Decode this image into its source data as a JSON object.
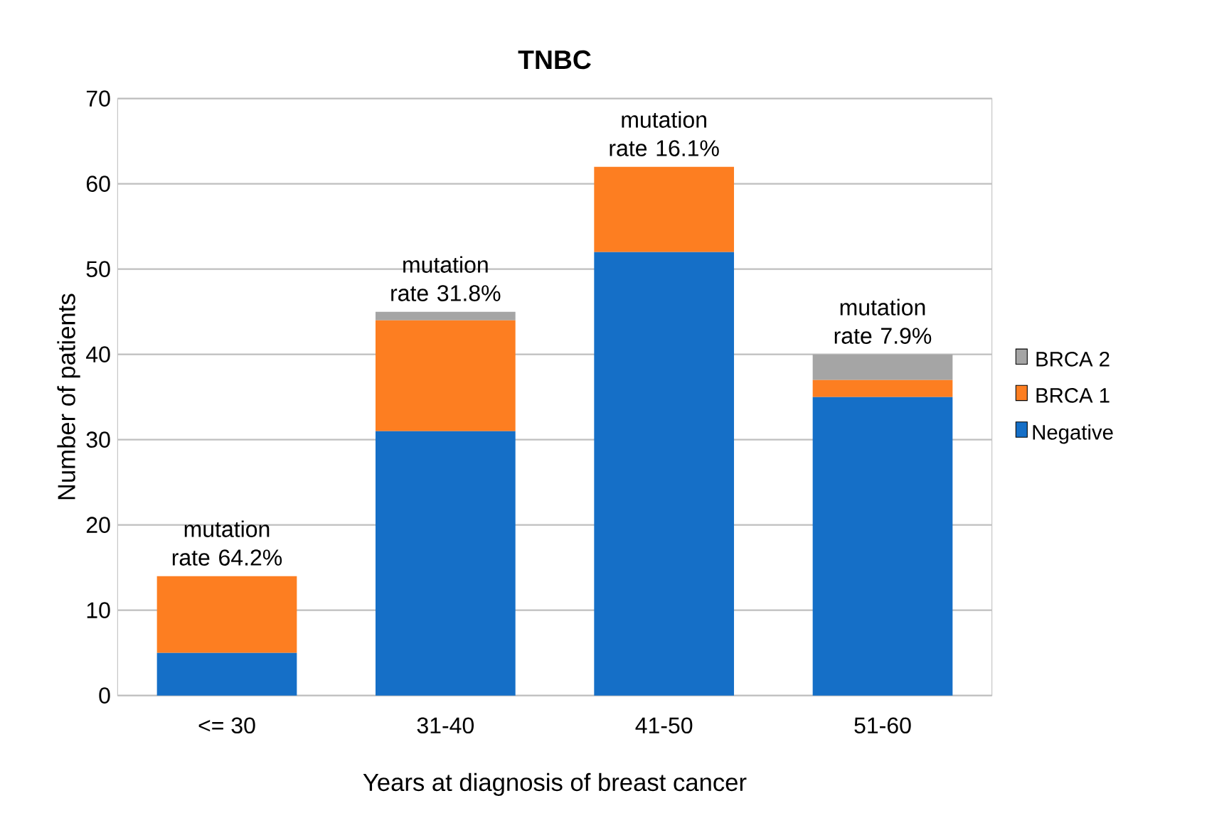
{
  "chart_data": {
    "type": "bar",
    "title": "TNBC",
    "xlabel": "Years at diagnosis of breast cancer",
    "ylabel": "Number of patients",
    "categories": [
      "<= 30",
      "31-40",
      "41-50",
      "51-60"
    ],
    "stacked": true,
    "series": [
      {
        "name": "Negative",
        "color": "#156fc7",
        "values": [
          5,
          31,
          52,
          35
        ]
      },
      {
        "name": "BRCA 1",
        "color": "#fd7e21",
        "values": [
          9,
          13,
          10,
          2
        ]
      },
      {
        "name": "BRCA 2",
        "color": "#a5a5a5",
        "values": [
          0,
          1,
          0,
          3
        ]
      }
    ],
    "ylim": [
      0,
      70
    ],
    "yticks": [
      0,
      10,
      20,
      30,
      40,
      50,
      60,
      70
    ],
    "grid": "y",
    "legend": "right",
    "annotations": [
      {
        "text": "mutation rate 64.2%",
        "x": "<= 30",
        "y": 14
      },
      {
        "text": "mutation rate 31.8%",
        "x": "31-40",
        "y": 45
      },
      {
        "text": "mutation rate 16.1%",
        "x": "41-50",
        "y": 62
      },
      {
        "text": "mutation rate 7.9%",
        "x": "51-60",
        "y": 40
      }
    ]
  }
}
